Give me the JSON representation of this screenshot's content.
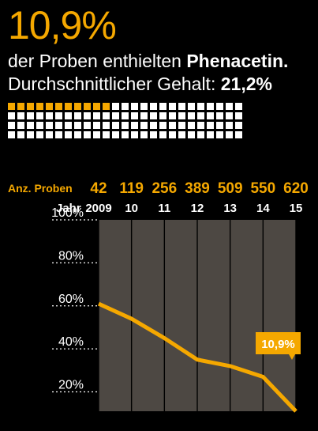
{
  "headline": "10,9%",
  "line2": {
    "prefix": "der Proben enthielten ",
    "substance": "Phenacetin."
  },
  "line3": {
    "prefix": "Durchschnittlicher Gehalt: ",
    "value": "21,2%"
  },
  "colors": {
    "accent": "#f5a800",
    "background": "#000000",
    "plot_background": "#4d4843",
    "squares_plain": "#ffffff"
  },
  "squares": {
    "total": 100,
    "highlighted": 11
  },
  "chart_data": {
    "type": "line",
    "row_labels": {
      "samples": "Anz. Proben",
      "year": "Jahr"
    },
    "x": [
      "2009",
      "10",
      "11",
      "12",
      "13",
      "14",
      "15"
    ],
    "samples": [
      "42",
      "119",
      "256",
      "389",
      "509",
      "550",
      "620"
    ],
    "series": [
      {
        "values": [
          61,
          54,
          45,
          35,
          32,
          27,
          11
        ]
      }
    ],
    "ylim": [
      0,
      100
    ],
    "yticks": [
      20,
      40,
      60,
      80,
      100
    ],
    "ytick_labels": [
      "20%",
      "40%",
      "60%",
      "80%",
      "100%"
    ],
    "callout": {
      "label": "10,9%"
    },
    "grid": "vertical"
  }
}
